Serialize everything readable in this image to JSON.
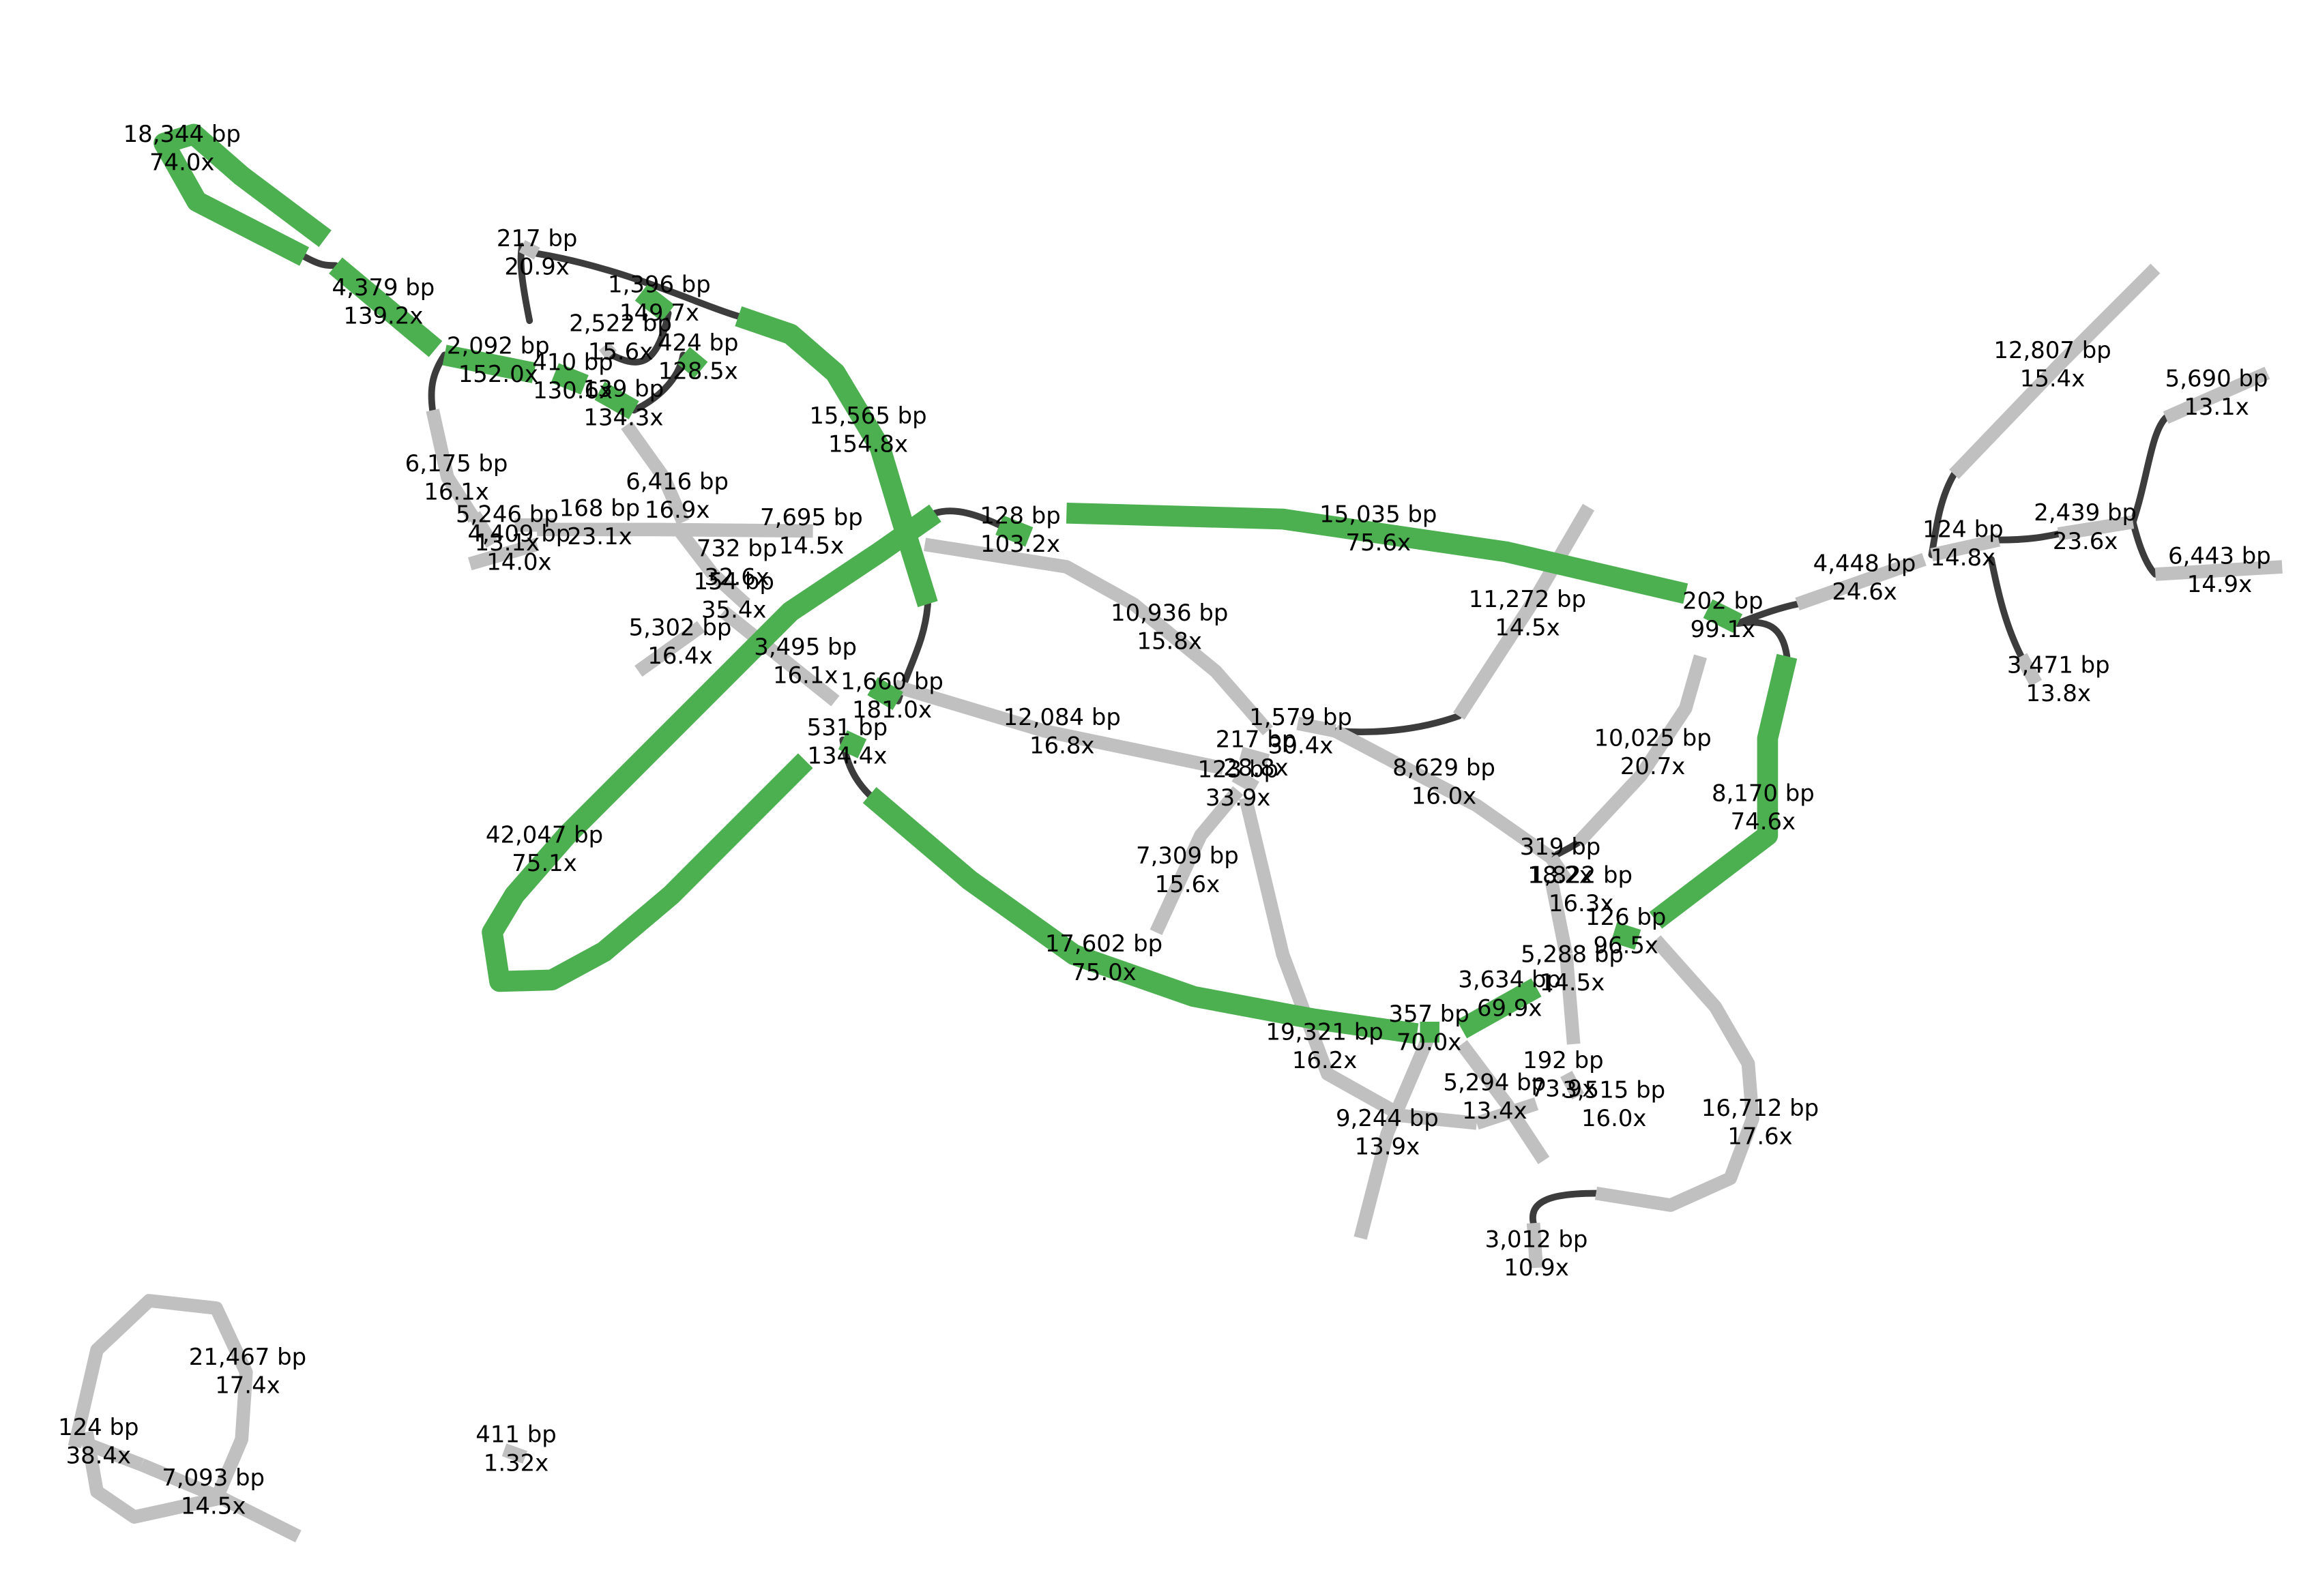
{
  "graph": {
    "colors": {
      "highlighted_segment": "#4caf50",
      "segment": "#c0c0c0",
      "link": "#3c3c3c",
      "label_text": "#000000"
    },
    "nodes": [
      {
        "id": "n18344",
        "length": "18,344 bp",
        "depth": "74.0x",
        "highlighted": true
      },
      {
        "id": "n4379",
        "length": "4,379 bp",
        "depth": "139.2x",
        "highlighted": true
      },
      {
        "id": "n2092",
        "length": "2,092 bp",
        "depth": "152.0x",
        "highlighted": true
      },
      {
        "id": "n217a",
        "length": "217 bp",
        "depth": "20.9x",
        "highlighted": false
      },
      {
        "id": "n1396",
        "length": "1,396 bp",
        "depth": "149.7x",
        "highlighted": true
      },
      {
        "id": "n2522",
        "length": "2,522 bp",
        "depth": "15.6x",
        "highlighted": false
      },
      {
        "id": "n424",
        "length": "424 bp",
        "depth": "128.5x",
        "highlighted": true
      },
      {
        "id": "n410",
        "length": "410 bp",
        "depth": "130.6x",
        "highlighted": true
      },
      {
        "id": "n139",
        "length": "139 bp",
        "depth": "134.3x",
        "highlighted": true
      },
      {
        "id": "n15565",
        "length": "15,565 bp",
        "depth": "154.8x",
        "highlighted": true
      },
      {
        "id": "n6175",
        "length": "6,175 bp",
        "depth": "16.1x",
        "highlighted": false
      },
      {
        "id": "n6416",
        "length": "6,416 bp",
        "depth": "16.9x",
        "highlighted": false
      },
      {
        "id": "n5246",
        "length": "5,246 bp",
        "depth": "13.1x",
        "highlighted": false
      },
      {
        "id": "n168",
        "length": "168 bp",
        "depth": "23.1x",
        "highlighted": false
      },
      {
        "id": "n4409",
        "length": "4,409 bp",
        "depth": "14.0x",
        "highlighted": false
      },
      {
        "id": "n7695",
        "length": "7,695 bp",
        "depth": "14.5x",
        "highlighted": false
      },
      {
        "id": "n732",
        "length": "732 bp",
        "depth": "32.6x",
        "highlighted": false
      },
      {
        "id": "n154",
        "length": "154 bp",
        "depth": "35.4x",
        "highlighted": false
      },
      {
        "id": "n5302",
        "length": "5,302 bp",
        "depth": "16.4x",
        "highlighted": false
      },
      {
        "id": "n3495",
        "length": "3,495 bp",
        "depth": "16.1x",
        "highlighted": false
      },
      {
        "id": "n128",
        "length": "128 bp",
        "depth": "103.2x",
        "highlighted": true
      },
      {
        "id": "n15035",
        "length": "15,035 bp",
        "depth": "75.6x",
        "highlighted": true
      },
      {
        "id": "n1660",
        "length": "1,660 bp",
        "depth": "181.0x",
        "highlighted": true
      },
      {
        "id": "n531",
        "length": "531 bp",
        "depth": "134.4x",
        "highlighted": true
      },
      {
        "id": "n10936",
        "length": "10,936 bp",
        "depth": "15.8x",
        "highlighted": false
      },
      {
        "id": "n12084",
        "length": "12,084 bp",
        "depth": "16.8x",
        "highlighted": false
      },
      {
        "id": "n11272",
        "length": "11,272 bp",
        "depth": "14.5x",
        "highlighted": false
      },
      {
        "id": "n1579",
        "length": "1,579 bp",
        "depth": "30.4x",
        "highlighted": false
      },
      {
        "id": "n217b",
        "length": "217 bp",
        "depth": "28.8x",
        "highlighted": false
      },
      {
        "id": "n123",
        "length": "123 bp",
        "depth": "33.9x",
        "highlighted": false
      },
      {
        "id": "n42047",
        "length": "42,047 bp",
        "depth": "75.1x",
        "highlighted": true
      },
      {
        "id": "n7309",
        "length": "7,309 bp",
        "depth": "15.6x",
        "highlighted": false
      },
      {
        "id": "n8629",
        "length": "8,629 bp",
        "depth": "16.0x",
        "highlighted": false
      },
      {
        "id": "n17602",
        "length": "17,602 bp",
        "depth": "75.0x",
        "highlighted": true
      },
      {
        "id": "n19321",
        "length": "19,321 bp",
        "depth": "16.2x",
        "highlighted": false
      },
      {
        "id": "n357",
        "length": "357 bp",
        "depth": "70.0x",
        "highlighted": true
      },
      {
        "id": "n3634",
        "length": "3,634 bp",
        "depth": "69.9x",
        "highlighted": true
      },
      {
        "id": "n9244",
        "length": "9,244 bp",
        "depth": "13.9x",
        "highlighted": false
      },
      {
        "id": "n5294",
        "length": "5,294 bp",
        "depth": "13.4x",
        "highlighted": false
      },
      {
        "id": "n192",
        "length": "192 bp",
        "depth": "73.9x",
        "highlighted": false
      },
      {
        "id": "n3515",
        "length": "3,515 bp",
        "depth": "16.0x",
        "highlighted": false
      },
      {
        "id": "n3012",
        "length": "3,012 bp",
        "depth": "10.9x",
        "highlighted": false
      },
      {
        "id": "n16712",
        "length": "16,712 bp",
        "depth": "17.6x",
        "highlighted": false
      },
      {
        "id": "n5288",
        "length": "5,288 bp",
        "depth": "14.5x",
        "highlighted": false
      },
      {
        "id": "n319",
        "length": "319 bp",
        "depth": "18.2x",
        "highlighted": false
      },
      {
        "id": "n1822",
        "length": "1,822 bp",
        "depth": "16.3x",
        "highlighted": false
      },
      {
        "id": "n126",
        "length": "126 bp",
        "depth": "96.5x",
        "highlighted": true
      },
      {
        "id": "n10025",
        "length": "10,025 bp",
        "depth": "20.7x",
        "highlighted": false
      },
      {
        "id": "n8170",
        "length": "8,170 bp",
        "depth": "74.6x",
        "highlighted": true
      },
      {
        "id": "n202",
        "length": "202 bp",
        "depth": "99.1x",
        "highlighted": true
      },
      {
        "id": "n4448",
        "length": "4,448 bp",
        "depth": "24.6x",
        "highlighted": false
      },
      {
        "id": "n12807",
        "length": "12,807 bp",
        "depth": "15.4x",
        "highlighted": false
      },
      {
        "id": "n124a",
        "length": "124 bp",
        "depth": "14.8x",
        "highlighted": false
      },
      {
        "id": "n2439",
        "length": "2,439 bp",
        "depth": "23.6x",
        "highlighted": false
      },
      {
        "id": "n5690",
        "length": "5,690 bp",
        "depth": "13.1x",
        "highlighted": false
      },
      {
        "id": "n6443",
        "length": "6,443 bp",
        "depth": "14.9x",
        "highlighted": false
      },
      {
        "id": "n3471",
        "length": "3,471 bp",
        "depth": "13.8x",
        "highlighted": false
      },
      {
        "id": "n21467",
        "length": "21,467 bp",
        "depth": "17.4x",
        "highlighted": false
      },
      {
        "id": "n124b",
        "length": "124 bp",
        "depth": "38.4x",
        "highlighted": false
      },
      {
        "id": "n7093",
        "length": "7,093 bp",
        "depth": "14.5x",
        "highlighted": false
      },
      {
        "id": "n411",
        "length": "411 bp",
        "depth": "1.32x",
        "highlighted": false
      }
    ]
  }
}
